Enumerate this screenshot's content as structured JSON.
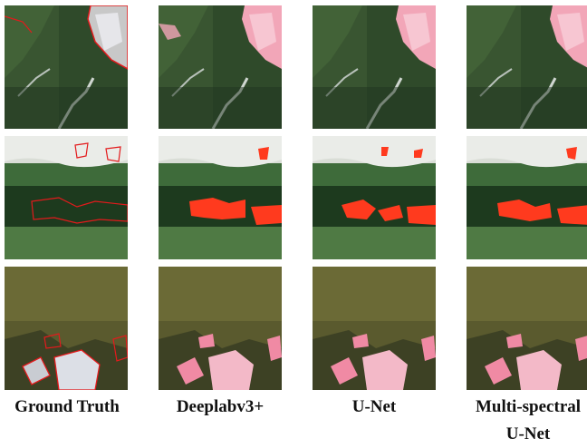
{
  "columns": [
    {
      "label": "Ground Truth"
    },
    {
      "label": "Deeplabv3+"
    },
    {
      "label": "U-Net"
    },
    {
      "label": "Multi-spectral",
      "label_line2": "U-Net"
    }
  ],
  "rows": [
    {
      "scene": "snowy-forest-valley"
    },
    {
      "scene": "green-forest-landslide"
    },
    {
      "scene": "olive-hills-bare-soil"
    }
  ],
  "colors": {
    "mask_fill": "#ff3a1e",
    "mask_outline": "#e31a1c",
    "snow_pink": "#f2a6b8"
  }
}
